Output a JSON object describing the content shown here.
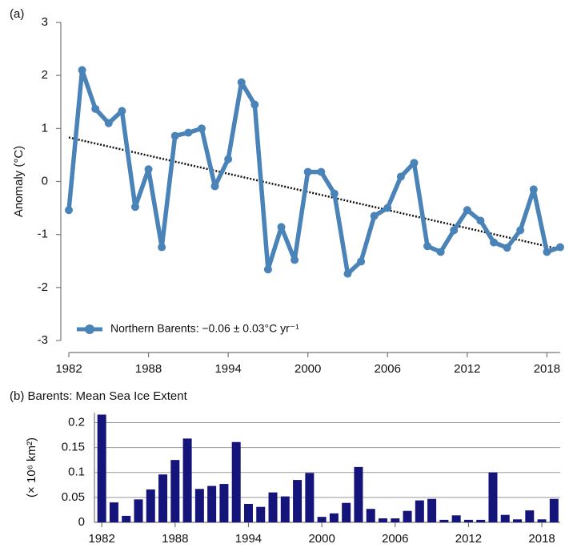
{
  "chart_data": [
    {
      "type": "line",
      "title": "(a)",
      "ylabel": "Anomaly (°C)",
      "x": [
        1982,
        1983,
        1984,
        1985,
        1986,
        1987,
        1988,
        1989,
        1990,
        1991,
        1992,
        1993,
        1994,
        1995,
        1996,
        1997,
        1998,
        1999,
        2000,
        2001,
        2002,
        2003,
        2004,
        2005,
        2006,
        2007,
        2008,
        2009,
        2010,
        2011,
        2012,
        2013,
        2014,
        2015,
        2016,
        2017,
        2018,
        2019
      ],
      "series": [
        {
          "name": "Northern Barents: −0.06 ± 0.03°C yr⁻¹",
          "color": "#4a83b8",
          "values": [
            -0.54,
            2.1,
            1.37,
            1.1,
            1.33,
            -0.48,
            0.23,
            -1.24,
            0.86,
            0.92,
            1.0,
            -0.09,
            0.42,
            1.87,
            1.45,
            -1.66,
            -0.86,
            -1.48,
            0.18,
            0.18,
            -0.23,
            -1.74,
            -1.51,
            -0.65,
            -0.5,
            0.09,
            0.35,
            -1.22,
            -1.33,
            -0.92,
            -0.54,
            -0.74,
            -1.15,
            -1.25,
            -0.92,
            -0.15,
            -1.33,
            -1.24
          ]
        }
      ],
      "trend": {
        "x": [
          1982,
          2019
        ],
        "values": [
          0.83,
          -1.28
        ],
        "color": "#111111"
      },
      "xlim": [
        1982,
        2019
      ],
      "xticks": [
        1982,
        1988,
        1994,
        2000,
        2006,
        2012,
        2018
      ],
      "ylim": [
        -3,
        3
      ],
      "yticks": [
        -3,
        -2,
        -1,
        0,
        1,
        2,
        3
      ],
      "grid": false,
      "legend": "lower left"
    },
    {
      "type": "bar",
      "title": "(b) Barents: Mean Sea Ice Extent",
      "ylabel": "(× 10⁶ km²)",
      "x": [
        1982,
        1983,
        1984,
        1985,
        1986,
        1987,
        1988,
        1989,
        1990,
        1991,
        1992,
        1993,
        1994,
        1995,
        1996,
        1997,
        1998,
        1999,
        2000,
        2001,
        2002,
        2003,
        2004,
        2005,
        2006,
        2007,
        2008,
        2009,
        2010,
        2011,
        2012,
        2013,
        2014,
        2015,
        2016,
        2017,
        2018,
        2019
      ],
      "values": [
        0.216,
        0.04,
        0.013,
        0.046,
        0.066,
        0.096,
        0.125,
        0.168,
        0.067,
        0.073,
        0.077,
        0.161,
        0.037,
        0.031,
        0.06,
        0.052,
        0.085,
        0.099,
        0.011,
        0.018,
        0.039,
        0.111,
        0.027,
        0.008,
        0.008,
        0.023,
        0.044,
        0.047,
        0.005,
        0.014,
        0.005,
        0.005,
        0.1,
        0.015,
        0.006,
        0.024,
        0.006,
        0.047
      ],
      "color": "#14147a",
      "xlim": [
        1981.4,
        2019.5
      ],
      "xticks": [
        1982,
        1988,
        1994,
        2000,
        2006,
        2012,
        2018
      ],
      "ylim": [
        0,
        0.22
      ],
      "yticks": [
        0,
        0.05,
        0.1,
        0.15,
        0.2
      ],
      "grid": true
    }
  ]
}
